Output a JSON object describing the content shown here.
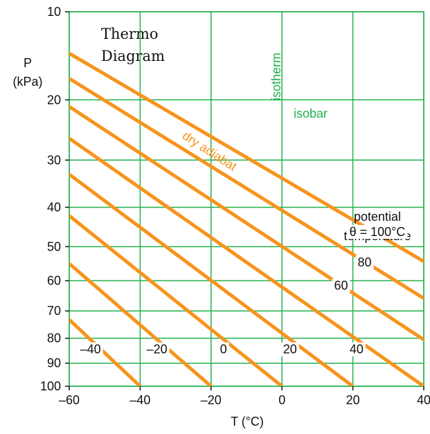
{
  "chart_data": {
    "type": "line",
    "title": "Thermo Diagram",
    "title_lines": [
      "Thermo",
      "Diagram"
    ],
    "xlabel": "T (°C)",
    "ylabel_lines": [
      "P",
      "(kPa)"
    ],
    "xlim": [
      -60,
      40
    ],
    "ylim": [
      10,
      100
    ],
    "y_scale": "log (P^0.286)",
    "x_ticks": [
      -60,
      -40,
      -20,
      0,
      20,
      40
    ],
    "x_tick_labels": [
      "–60",
      "–40",
      "–20",
      "0",
      "20",
      "40"
    ],
    "y_ticks": [
      10,
      20,
      30,
      40,
      50,
      60,
      70,
      80,
      90,
      100
    ],
    "y_tick_labels": [
      "10",
      "20",
      "30",
      "40",
      "50",
      "60",
      "70",
      "80",
      "90",
      "100"
    ],
    "grid": true,
    "grid_color": "#22b14c",
    "adiabat_color": "#f7941d",
    "labels": {
      "isotherm": "isotherm",
      "isobar": "isobar",
      "dry_adiabat": "dry adiabat",
      "potential_temperature": [
        "potential",
        "temperature"
      ],
      "theta_100": "θ = 100°C"
    },
    "dry_adiabats": [
      {
        "theta": -40,
        "label": "–40"
      },
      {
        "theta": -20,
        "label": "–20"
      },
      {
        "theta": 0,
        "label": "0"
      },
      {
        "theta": 20,
        "label": "20"
      },
      {
        "theta": 40,
        "label": "40"
      },
      {
        "theta": 60,
        "label": "60"
      },
      {
        "theta": 80,
        "label": "80"
      },
      {
        "theta": 100,
        "label": "θ = 100°C"
      }
    ]
  }
}
